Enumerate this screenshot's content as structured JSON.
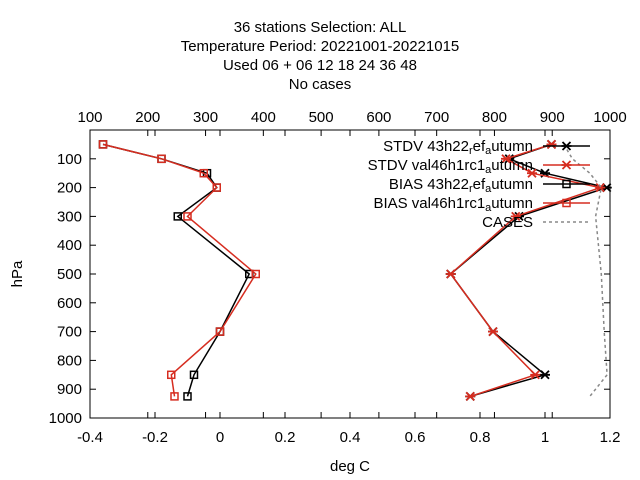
{
  "title_lines": [
    "36 stations Selection: ALL",
    "Temperature  Period: 20221001-20221015",
    "Used  06  + 06 12 18 24 36 48",
    "No cases"
  ],
  "colors": {
    "black": "#000000",
    "red": "#d62d20",
    "cases": "#888888"
  },
  "chart_data": {
    "type": "line",
    "xlabel": "deg C",
    "ylabel": "hPa",
    "xlim": [
      -0.4,
      1.2
    ],
    "ylim": [
      1000,
      0
    ],
    "x2lim": [
      100,
      1000
    ],
    "x_ticks": [
      "-0.4",
      "-0.2",
      "0",
      "0.2",
      "0.4",
      "0.6",
      "0.8",
      "1",
      "1.2"
    ],
    "x_tick_values": [
      -0.4,
      -0.2,
      0,
      0.2,
      0.4,
      0.6,
      0.8,
      1,
      1.2
    ],
    "x2_ticks": [
      "100",
      "200",
      "300",
      "400",
      "500",
      "600",
      "700",
      "800",
      "900",
      "1000"
    ],
    "x2_tick_values": [
      100,
      200,
      300,
      400,
      500,
      600,
      700,
      800,
      900,
      1000
    ],
    "y_ticks": [
      "100",
      "200",
      "300",
      "400",
      "500",
      "600",
      "700",
      "800",
      "900",
      "1000"
    ],
    "y_tick_values": [
      100,
      200,
      300,
      400,
      500,
      600,
      700,
      800,
      900,
      1000
    ],
    "levels": [
      50,
      100,
      150,
      200,
      300,
      500,
      700,
      850,
      925
    ],
    "legend_position": "top-right",
    "series": [
      {
        "name": "STDV 43h22_ref_autumn",
        "legend": {
          "base": "STDV 43h22",
          "s1": "r",
          "m1": "ef",
          "s2": "a",
          "m2": "utumn"
        },
        "axis": "x",
        "color": "#000000",
        "marker": "star",
        "values": [
          1.02,
          0.89,
          1.0,
          1.19,
          0.92,
          0.71,
          0.84,
          1.0,
          0.77
        ]
      },
      {
        "name": "STDV val46h1rc1_autumn",
        "legend": {
          "base": "STDV val46h1rc1",
          "s1": "",
          "m1": "",
          "s2": "a",
          "m2": "utumn"
        },
        "axis": "x",
        "color": "#d62d20",
        "marker": "star",
        "values": [
          1.02,
          0.88,
          0.96,
          1.17,
          0.91,
          0.71,
          0.84,
          0.97,
          0.77
        ]
      },
      {
        "name": "BIAS 43h22_ref_autumn",
        "legend": {
          "base": "BIAS 43h22",
          "s1": "r",
          "m1": "ef",
          "s2": "a",
          "m2": "utumn"
        },
        "axis": "x",
        "color": "#000000",
        "marker": "square",
        "values": [
          -0.36,
          -0.18,
          -0.04,
          -0.01,
          -0.13,
          0.09,
          0.0,
          -0.08,
          -0.1
        ]
      },
      {
        "name": "BIAS val46h1rc1_autumn",
        "legend": {
          "base": "BIAS val46h1rc1",
          "s1": "",
          "m1": "",
          "s2": "a",
          "m2": "utumn"
        },
        "axis": "x",
        "color": "#d62d20",
        "marker": "square",
        "values": [
          -0.36,
          -0.18,
          -0.05,
          -0.01,
          -0.1,
          0.11,
          0.0,
          -0.15,
          -0.14
        ]
      },
      {
        "name": "CASES",
        "legend": {
          "base": "CASES",
          "s1": "",
          "m1": "",
          "s2": "",
          "m2": ""
        },
        "axis": "x2",
        "color": "#888888",
        "marker": "none",
        "dashed": true,
        "values": [
          920,
          935,
          965,
          985,
          975,
          985,
          990,
          995,
          965
        ]
      }
    ]
  }
}
